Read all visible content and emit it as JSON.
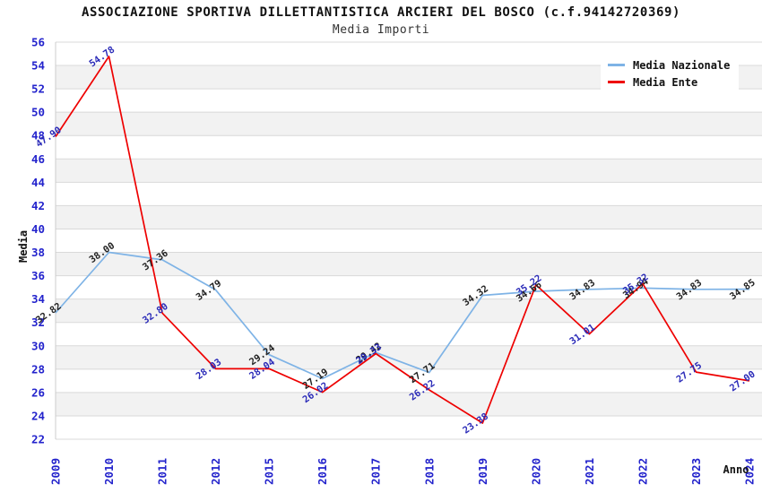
{
  "header": {
    "title": "ASSOCIAZIONE SPORTIVA DILLETTANTISTICA ARCIERI DEL BOSCO (c.f.94142720369)",
    "subtitle": "Media Importi"
  },
  "chart_data": {
    "type": "line",
    "title": "ASSOCIAZIONE SPORTIVA DILLETTANTISTICA ARCIERI DEL BOSCO (c.f.94142720369)",
    "subtitle": "Media Importi",
    "xlabel": "Anno",
    "ylabel": "Media",
    "categories": [
      "2009",
      "2010",
      "2011",
      "2012",
      "2015",
      "2016",
      "2017",
      "2018",
      "2019",
      "2020",
      "2021",
      "2022",
      "2023",
      "2024"
    ],
    "series": [
      {
        "name": "Media Nazionale",
        "color": "#7eb3e6",
        "label_color": "#222222",
        "values": [
          32.82,
          38.0,
          37.36,
          34.79,
          29.24,
          27.19,
          29.42,
          27.71,
          34.32,
          34.66,
          34.83,
          34.94,
          34.83,
          34.85
        ],
        "labels": [
          "32.82",
          "38.00",
          "37.36",
          "34.79",
          "29.24",
          "27.19",
          "29.42",
          "27.71",
          "34.32",
          "34.66",
          "34.83",
          "34.94",
          "34.83",
          "34.85"
        ]
      },
      {
        "name": "Media Ente",
        "color": "#ee0000",
        "label_color": "#2a2ab8",
        "values": [
          47.9,
          54.78,
          32.8,
          28.03,
          28.04,
          26.02,
          29.33,
          26.22,
          23.38,
          35.22,
          31.01,
          35.32,
          27.75,
          27.0
        ],
        "labels": [
          "47.90",
          "54.78",
          "32.80",
          "28.03",
          "28.04",
          "26.02",
          "29.33",
          "26.22",
          "23.38",
          "35.22",
          "31.01",
          "35.32",
          "27.75",
          "27.00"
        ]
      }
    ],
    "ylim": [
      22,
      56
    ],
    "ytick_step": 2,
    "grid": true,
    "band_colors": [
      "#ffffff",
      "#f2f2f2"
    ],
    "gridline_color": "#d9d9d9",
    "axis_border_color": "#cccccc",
    "axis_tick_color": "#2323cc",
    "axis_title_color": "#111111",
    "legend_position": "top-right"
  }
}
